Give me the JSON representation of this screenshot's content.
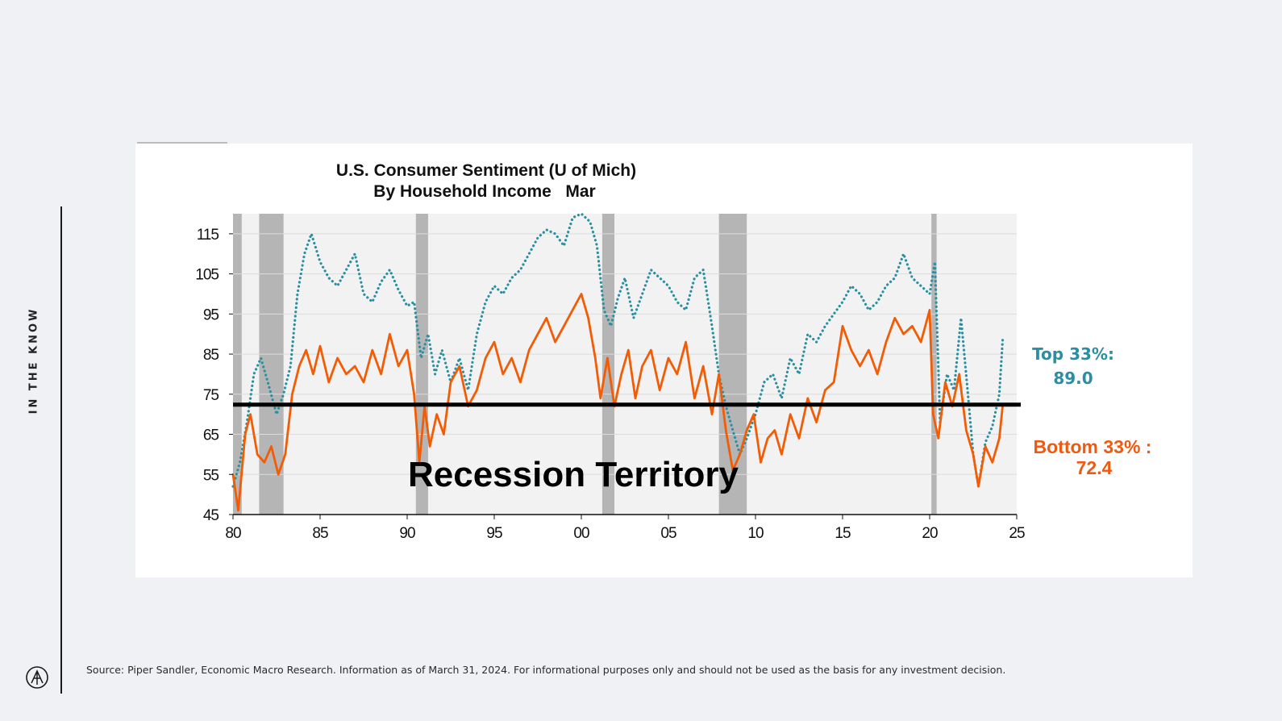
{
  "page": {
    "side_label": "IN THE KNOW",
    "source_note": "Source: Piper Sandler, Economic Macro Research. Information as of March 31, 2024. For informational purposes only and should not be used as the basis for any investment decision.",
    "logo_icon": "firm-logo-icon"
  },
  "chart_data": {
    "type": "line",
    "title_line1": "U.S. Consumer Sentiment (U of Mich)",
    "title_line2": "By Household Income   Mar",
    "xlabel": "",
    "ylabel": "",
    "xlim": [
      1980,
      2025
    ],
    "ylim": [
      45,
      120
    ],
    "x_ticks": [
      {
        "value": 1980,
        "label": "80"
      },
      {
        "value": 1985,
        "label": "85"
      },
      {
        "value": 1990,
        "label": "90"
      },
      {
        "value": 1995,
        "label": "95"
      },
      {
        "value": 2000,
        "label": "00"
      },
      {
        "value": 2005,
        "label": "05"
      },
      {
        "value": 2010,
        "label": "10"
      },
      {
        "value": 2015,
        "label": "15"
      },
      {
        "value": 2020,
        "label": "20"
      },
      {
        "value": 2025,
        "label": "25"
      }
    ],
    "y_ticks": [
      {
        "value": 45,
        "label": "45"
      },
      {
        "value": 55,
        "label": "55"
      },
      {
        "value": 65,
        "label": "65"
      },
      {
        "value": 75,
        "label": "75"
      },
      {
        "value": 85,
        "label": "85"
      },
      {
        "value": 95,
        "label": "95"
      },
      {
        "value": 105,
        "label": "105"
      },
      {
        "value": 115,
        "label": "115"
      }
    ],
    "grid": true,
    "recessions": [
      {
        "start": 1980.0,
        "end": 1980.5
      },
      {
        "start": 1981.5,
        "end": 1982.9
      },
      {
        "start": 1990.5,
        "end": 1991.2
      },
      {
        "start": 2001.2,
        "end": 2001.9
      },
      {
        "start": 2007.9,
        "end": 2009.5
      },
      {
        "start": 2020.1,
        "end": 2020.4
      }
    ],
    "threshold": {
      "value": 72.4,
      "label": "Recession Territory"
    },
    "series": [
      {
        "name": "Top 33%",
        "style": "dotted",
        "color": "#2a8fa0",
        "end_label": "Top 33%:",
        "end_value_label": "89.0",
        "x": [
          1980.0,
          1980.4,
          1980.8,
          1981.2,
          1981.6,
          1982.0,
          1982.5,
          1982.9,
          1983.3,
          1983.7,
          1984.1,
          1984.5,
          1985.0,
          1985.5,
          1986.0,
          1986.5,
          1987.0,
          1987.5,
          1988.0,
          1988.5,
          1989.0,
          1989.5,
          1990.0,
          1990.4,
          1990.8,
          1991.2,
          1991.6,
          1992.0,
          1992.5,
          1993.0,
          1993.5,
          1994.0,
          1994.5,
          1995.0,
          1995.5,
          1996.0,
          1996.5,
          1997.0,
          1997.5,
          1998.0,
          1998.5,
          1999.0,
          1999.5,
          2000.0,
          2000.5,
          2000.9,
          2001.3,
          2001.7,
          2002.1,
          2002.5,
          2003.0,
          2003.5,
          2004.0,
          2004.5,
          2005.0,
          2005.5,
          2006.0,
          2006.5,
          2007.0,
          2007.5,
          2007.9,
          2008.3,
          2008.7,
          2009.1,
          2009.5,
          2010.0,
          2010.5,
          2011.0,
          2011.5,
          2012.0,
          2012.5,
          2013.0,
          2013.5,
          2014.0,
          2014.5,
          2015.0,
          2015.5,
          2016.0,
          2016.5,
          2017.0,
          2017.5,
          2018.0,
          2018.5,
          2019.0,
          2019.5,
          2020.0,
          2020.3,
          2020.6,
          2021.0,
          2021.4,
          2021.8,
          2022.2,
          2022.5,
          2022.8,
          2023.2,
          2023.6,
          2024.0,
          2024.2
        ],
        "values": [
          52,
          58,
          68,
          80,
          84,
          78,
          70,
          75,
          82,
          100,
          110,
          115,
          108,
          104,
          102,
          106,
          110,
          100,
          98,
          103,
          106,
          101,
          97,
          98,
          84,
          90,
          80,
          86,
          78,
          84,
          76,
          90,
          98,
          102,
          100,
          104,
          106,
          110,
          114,
          116,
          115,
          112,
          119,
          120,
          118,
          112,
          96,
          92,
          99,
          104,
          94,
          100,
          106,
          104,
          102,
          98,
          96,
          104,
          106,
          92,
          80,
          72,
          66,
          60,
          64,
          70,
          78,
          80,
          74,
          84,
          80,
          90,
          88,
          92,
          95,
          98,
          102,
          100,
          96,
          98,
          102,
          104,
          110,
          104,
          102,
          100,
          108,
          68,
          80,
          76,
          94,
          75,
          60,
          52,
          63,
          67,
          75,
          89
        ]
      },
      {
        "name": "Bottom 33%",
        "style": "solid",
        "color": "#f25c05",
        "end_label": "Bottom 33% :",
        "end_value_label": "72.4",
        "x": [
          1980.0,
          1980.3,
          1980.7,
          1981.0,
          1981.4,
          1981.8,
          1982.2,
          1982.6,
          1983.0,
          1983.4,
          1983.8,
          1984.2,
          1984.6,
          1985.0,
          1985.5,
          1986.0,
          1986.5,
          1987.0,
          1987.5,
          1988.0,
          1988.5,
          1989.0,
          1989.5,
          1990.0,
          1990.4,
          1990.7,
          1991.0,
          1991.3,
          1991.7,
          1992.1,
          1992.5,
          1993.0,
          1993.5,
          1994.0,
          1994.5,
          1995.0,
          1995.5,
          1996.0,
          1996.5,
          1997.0,
          1997.5,
          1998.0,
          1998.5,
          1999.0,
          1999.5,
          2000.0,
          2000.4,
          2000.8,
          2001.1,
          2001.5,
          2001.9,
          2002.3,
          2002.7,
          2003.1,
          2003.5,
          2004.0,
          2004.5,
          2005.0,
          2005.5,
          2006.0,
          2006.5,
          2007.0,
          2007.5,
          2007.9,
          2008.3,
          2008.7,
          2009.1,
          2009.5,
          2009.9,
          2010.3,
          2010.7,
          2011.1,
          2011.5,
          2012.0,
          2012.5,
          2013.0,
          2013.5,
          2014.0,
          2014.5,
          2015.0,
          2015.5,
          2016.0,
          2016.5,
          2017.0,
          2017.5,
          2018.0,
          2018.5,
          2019.0,
          2019.5,
          2020.0,
          2020.2,
          2020.5,
          2020.9,
          2021.3,
          2021.7,
          2022.1,
          2022.5,
          2022.8,
          2023.2,
          2023.6,
          2024.0,
          2024.2
        ],
        "values": [
          55,
          46,
          65,
          70,
          60,
          58,
          62,
          55,
          60,
          75,
          82,
          86,
          80,
          87,
          78,
          84,
          80,
          82,
          78,
          86,
          80,
          90,
          82,
          86,
          75,
          58,
          72,
          62,
          70,
          65,
          78,
          82,
          72,
          76,
          84,
          88,
          80,
          84,
          78,
          86,
          90,
          94,
          88,
          92,
          96,
          100,
          94,
          84,
          74,
          84,
          72,
          80,
          86,
          74,
          82,
          86,
          76,
          84,
          80,
          88,
          74,
          82,
          70,
          80,
          66,
          56,
          60,
          66,
          70,
          58,
          64,
          66,
          60,
          70,
          64,
          74,
          68,
          76,
          78,
          92,
          86,
          82,
          86,
          80,
          88,
          94,
          90,
          92,
          88,
          96,
          70,
          64,
          78,
          72,
          80,
          66,
          60,
          52,
          62,
          58,
          64,
          72.4
        ]
      }
    ]
  }
}
